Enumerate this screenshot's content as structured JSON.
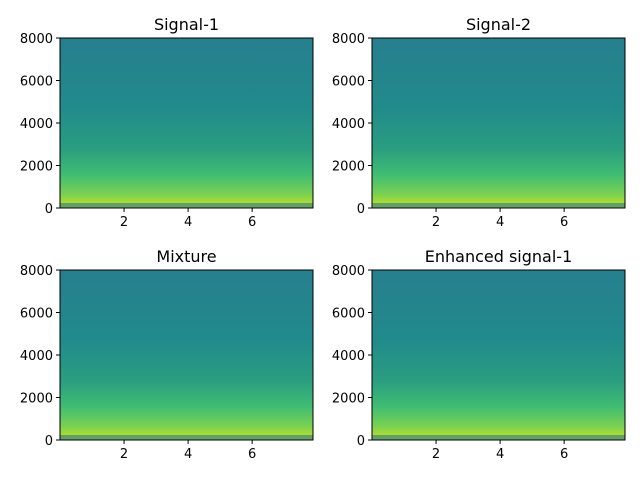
{
  "chart_data": [
    {
      "type": "spectrogram",
      "title": "Signal-1",
      "xlim": [
        0,
        7.9
      ],
      "ylim": [
        0,
        8000
      ],
      "xticks": [
        2,
        4,
        6
      ],
      "yticks": [
        0,
        2000,
        4000,
        6000,
        8000
      ],
      "colormap": "viridis"
    },
    {
      "type": "spectrogram",
      "title": "Signal-2",
      "xlim": [
        0,
        7.9
      ],
      "ylim": [
        0,
        8000
      ],
      "xticks": [
        2,
        4,
        6
      ],
      "yticks": [
        0,
        2000,
        4000,
        6000,
        8000
      ],
      "colormap": "viridis"
    },
    {
      "type": "spectrogram",
      "title": "Mixture",
      "xlim": [
        0,
        7.9
      ],
      "ylim": [
        0,
        8000
      ],
      "xticks": [
        2,
        4,
        6
      ],
      "yticks": [
        0,
        2000,
        4000,
        6000,
        8000
      ],
      "colormap": "viridis"
    },
    {
      "type": "spectrogram",
      "title": "Enhanced signal-1",
      "xlim": [
        0,
        7.9
      ],
      "ylim": [
        0,
        8000
      ],
      "xticks": [
        2,
        4,
        6
      ],
      "yticks": [
        0,
        2000,
        4000,
        6000,
        8000
      ],
      "colormap": "viridis"
    }
  ]
}
